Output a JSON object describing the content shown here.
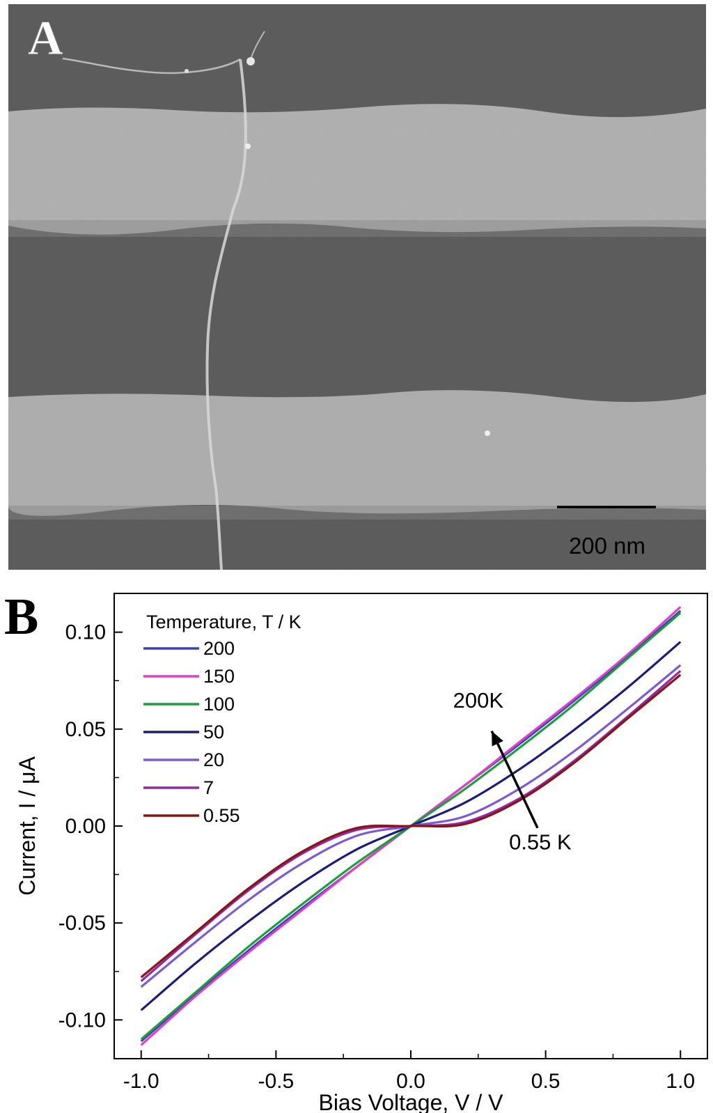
{
  "panel_a": {
    "label": "A",
    "scale_bar_label": "200 nm"
  },
  "panel_b": {
    "label": "B"
  },
  "chart_data": {
    "type": "line",
    "title": "",
    "xlabel": "Bias Voltage, V / V",
    "ylabel": "Current, I / μA",
    "xlim": [
      -1.1,
      1.1
    ],
    "ylim": [
      -0.12,
      0.12
    ],
    "x_ticks": [
      -1.0,
      -0.5,
      0.0,
      0.5,
      1.0
    ],
    "x_tick_labels": [
      "-1.0",
      "-0.5",
      "0.0",
      "0.5",
      "1.0"
    ],
    "y_ticks": [
      -0.1,
      -0.05,
      0.0,
      0.05,
      0.1
    ],
    "y_tick_labels": [
      "-0.10",
      "-0.05",
      "0.00",
      "0.05",
      "0.10"
    ],
    "grid": false,
    "legend_title": "Temperature, T / K",
    "legend_position": "top-left",
    "x": [
      -1.0,
      -0.8,
      -0.6,
      -0.4,
      -0.2,
      0.0,
      0.2,
      0.4,
      0.6,
      0.8,
      1.0
    ],
    "series": [
      {
        "name": "200",
        "color": "#3a3ec0",
        "values": [
          -0.111,
          -0.087,
          -0.064,
          -0.042,
          -0.021,
          0.0,
          0.021,
          0.042,
          0.064,
          0.087,
          0.111
        ]
      },
      {
        "name": "150",
        "color": "#e040c8",
        "values": [
          -0.113,
          -0.088,
          -0.065,
          -0.043,
          -0.021,
          0.0,
          0.021,
          0.043,
          0.065,
          0.088,
          0.113
        ]
      },
      {
        "name": "100",
        "color": "#1a9e3a",
        "values": [
          -0.11,
          -0.086,
          -0.062,
          -0.04,
          -0.019,
          0.0,
          0.019,
          0.04,
          0.062,
          0.086,
          0.11
        ]
      },
      {
        "name": "50",
        "color": "#1c1c78",
        "values": [
          -0.095,
          -0.071,
          -0.049,
          -0.029,
          -0.012,
          0.0,
          0.012,
          0.029,
          0.049,
          0.071,
          0.095
        ]
      },
      {
        "name": "20",
        "color": "#7a5cd0",
        "values": [
          -0.083,
          -0.06,
          -0.038,
          -0.019,
          -0.005,
          0.0,
          0.005,
          0.019,
          0.038,
          0.06,
          0.083
        ]
      },
      {
        "name": "7",
        "color": "#8e2aa8",
        "values": [
          -0.08,
          -0.056,
          -0.033,
          -0.014,
          -0.002,
          0.0,
          0.002,
          0.014,
          0.033,
          0.056,
          0.08
        ]
      },
      {
        "name": "0.55",
        "color": "#8a1414",
        "values": [
          -0.078,
          -0.055,
          -0.032,
          -0.013,
          -0.001,
          0.0,
          0.001,
          0.013,
          0.032,
          0.055,
          0.078
        ]
      }
    ],
    "annotations": [
      {
        "text": "200K",
        "x": 0.25,
        "y": 0.061
      },
      {
        "text": "0.55 K",
        "x": 0.48,
        "y": -0.012
      }
    ],
    "arrow": {
      "from_x": 0.47,
      "from_y": -0.001,
      "to_x": 0.3,
      "to_y": 0.049
    }
  }
}
